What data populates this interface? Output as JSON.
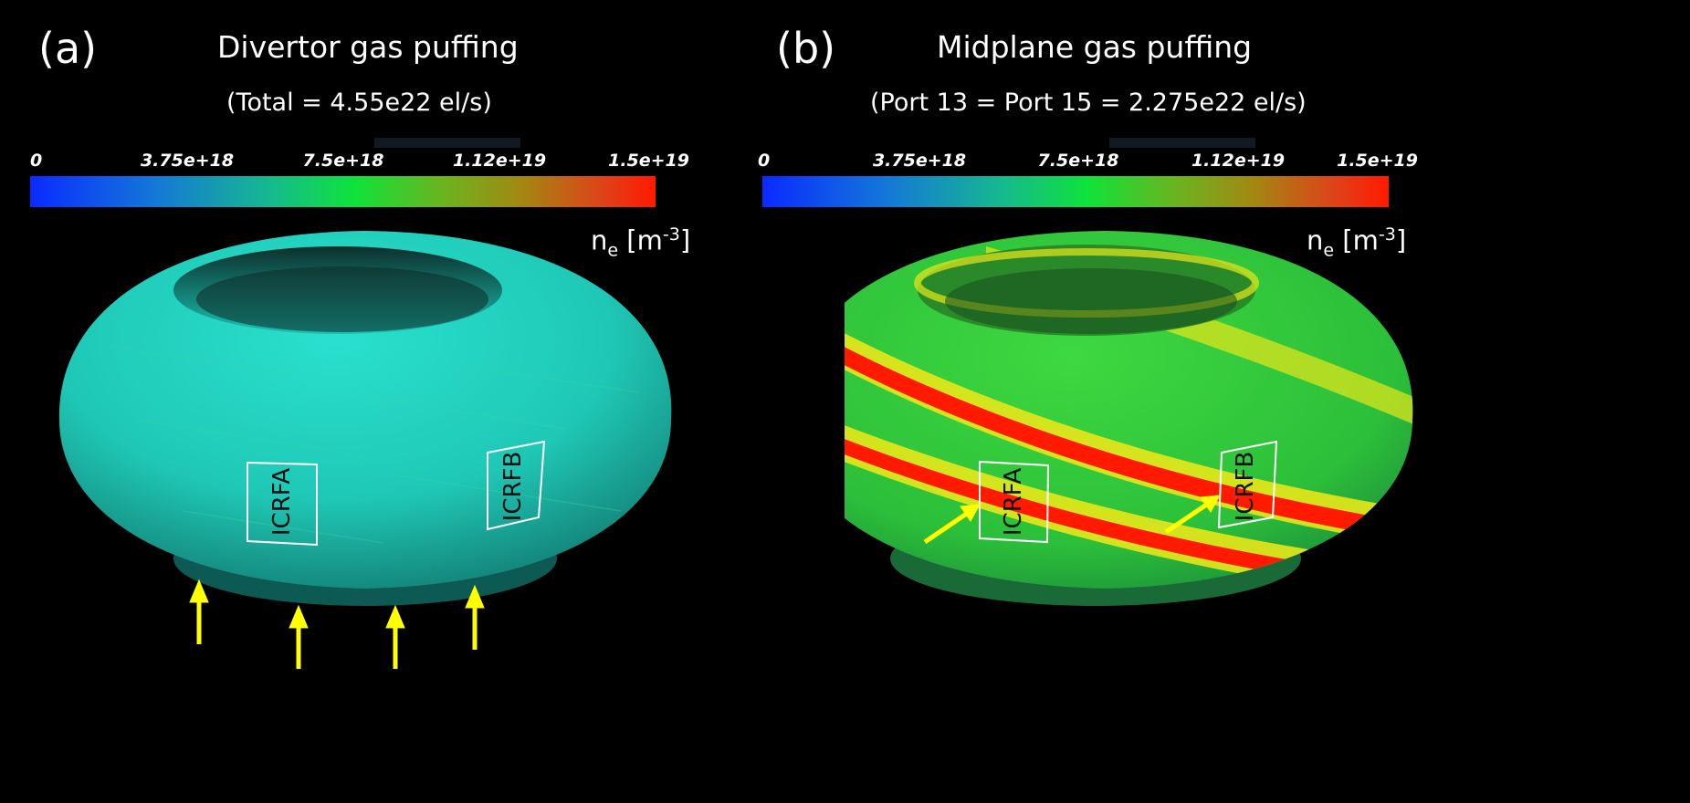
{
  "panels": [
    {
      "label": "(a)",
      "title": "Divertor gas puffing",
      "subtitle": "(Total = 4.55e22 el/s)",
      "colorbar": {
        "ticks": [
          "0",
          "3.75e+18",
          "7.5e+18",
          "1.12e+19",
          "1.5e+19"
        ],
        "unit_base": "n",
        "unit_sub": "e",
        "unit_open": " [m",
        "unit_sup": "-3",
        "unit_close": "]"
      },
      "antennas": [
        "ICRFA",
        "ICRFB"
      ]
    },
    {
      "label": "(b)",
      "title": "Midplane gas puffing",
      "subtitle": "(Port 13 = Port 15 = 2.275e22 el/s)",
      "colorbar": {
        "ticks": [
          "0",
          "3.75e+18",
          "7.5e+18",
          "1.12e+19",
          "1.5e+19"
        ],
        "unit_base": "n",
        "unit_sub": "e",
        "unit_open": " [m",
        "unit_sup": "-3",
        "unit_close": "]"
      },
      "antennas": [
        "ICRFA",
        "ICRFB"
      ]
    }
  ],
  "colors": {
    "background": "#000000",
    "torus_low": "#1fd9c6",
    "band_high": "#ff1a00",
    "band_mid": "#e7e71a",
    "arrow": "#ffff00",
    "antenna_outline": "#ffffff",
    "colormap": [
      "#0a2bff",
      "#18a0c8",
      "#10e23a",
      "#8a9a12",
      "#ff1a00"
    ]
  }
}
